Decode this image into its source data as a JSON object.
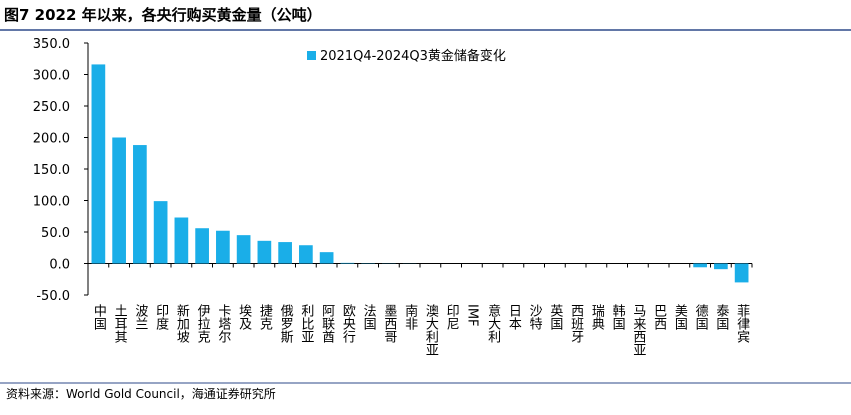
{
  "chart_data": {
    "type": "bar",
    "title": "图7  2022 年以来，各央行购买黄金量（公吨）",
    "source": "资料来源：World Gold Council，海通证券研究所",
    "categories": [
      "中国",
      "土耳其",
      "波兰",
      "印度",
      "新加坡",
      "伊拉克",
      "卡塔尔",
      "埃及",
      "捷克",
      "俄罗斯",
      "利比亚",
      "阿联酋",
      "欧央行",
      "法国",
      "墨西哥",
      "南非",
      "澳大利亚",
      "印尼",
      "IMF",
      "意大利",
      "日本",
      "沙特",
      "英国",
      "西班牙",
      "瑞典",
      "韩国",
      "马来西亚",
      "巴西",
      "美国",
      "德国",
      "泰国",
      "菲律宾"
    ],
    "series": [
      {
        "name": "2021Q4-2024Q3黄金储备变化",
        "color": "#1aaee8",
        "values": [
          316,
          200,
          188,
          99,
          73,
          56,
          52,
          45,
          36,
          34,
          29,
          18,
          1,
          0.5,
          0.3,
          0.2,
          0,
          0,
          0,
          0,
          0,
          0,
          0,
          0,
          0,
          0,
          0,
          0,
          0,
          -6,
          -9,
          -30
        ]
      }
    ],
    "ylim": [
      -50,
      350
    ],
    "yticks": [
      {
        "value": -50,
        "label": "-50.0"
      },
      {
        "value": 0,
        "label": "0.0"
      },
      {
        "value": 50,
        "label": "50.0"
      },
      {
        "value": 100,
        "label": "100.0"
      },
      {
        "value": 150,
        "label": "150.0"
      },
      {
        "value": 200,
        "label": "200.0"
      },
      {
        "value": 250,
        "label": "250.0"
      },
      {
        "value": 300,
        "label": "300.0"
      },
      {
        "value": 350,
        "label": "350.0"
      }
    ],
    "grid": false
  }
}
